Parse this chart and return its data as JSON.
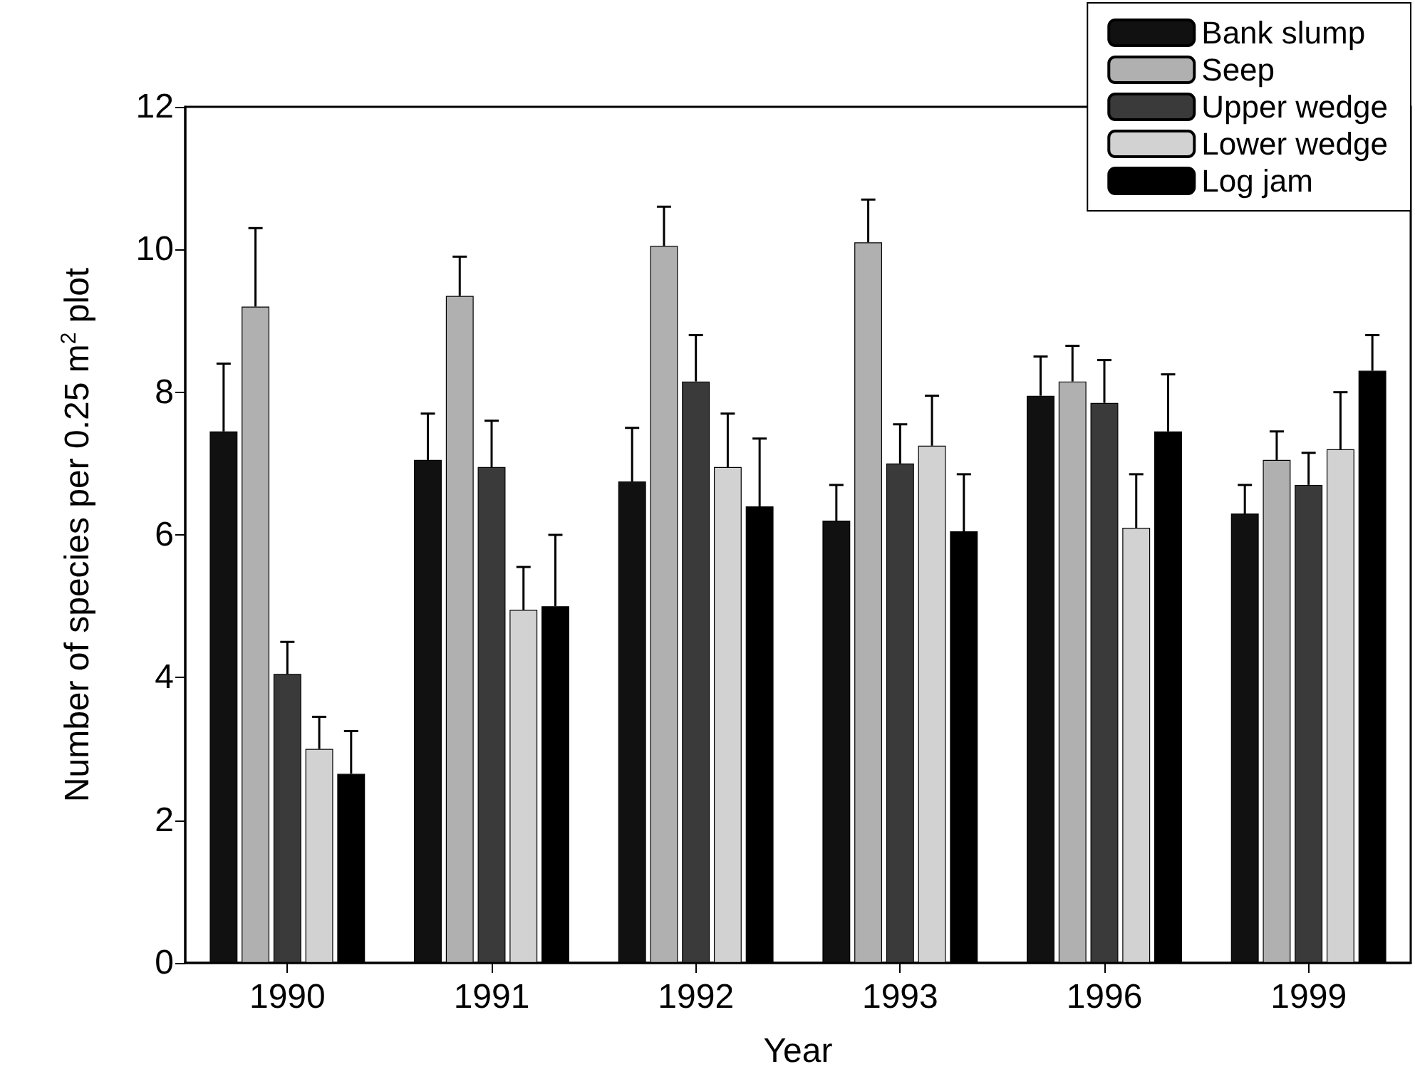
{
  "chart_data": {
    "type": "bar",
    "xlabel": "Year",
    "ylabel": "Number of species per 0.25 m$^{2}$ plot",
    "categories": [
      "1990",
      "1991",
      "1992",
      "1993",
      "1996",
      "1999"
    ],
    "series": [
      {
        "name": "Bank slump",
        "color": "#111111",
        "values": [
          7.45,
          7.05,
          6.75,
          6.2,
          7.95,
          6.3
        ],
        "errors": [
          [
            7.45,
            8.4
          ],
          [
            7.05,
            7.7
          ],
          [
            6.75,
            7.5
          ],
          [
            6.2,
            6.7
          ],
          [
            7.95,
            8.5
          ],
          [
            6.3,
            6.7
          ]
        ]
      },
      {
        "name": "Seep",
        "color": "#b0b0b0",
        "values": [
          9.2,
          9.35,
          10.05,
          10.1,
          8.15,
          7.05
        ],
        "errors": [
          [
            9.2,
            10.3
          ],
          [
            9.35,
            9.9
          ],
          [
            10.05,
            10.6
          ],
          [
            10.1,
            10.7
          ],
          [
            8.15,
            8.65
          ],
          [
            7.05,
            7.45
          ]
        ]
      },
      {
        "name": "Upper wedge",
        "color": "#3a3a3a",
        "values": [
          4.05,
          6.95,
          8.15,
          7.0,
          7.85,
          6.7
        ],
        "errors": [
          [
            4.05,
            4.5
          ],
          [
            6.95,
            7.6
          ],
          [
            8.15,
            8.8
          ],
          [
            7.0,
            7.55
          ],
          [
            7.85,
            8.45
          ],
          [
            6.7,
            7.15
          ]
        ]
      },
      {
        "name": "Lower wedge",
        "color": "#d2d2d2",
        "values": [
          3.0,
          4.95,
          6.95,
          7.25,
          6.1,
          7.2
        ],
        "errors": [
          [
            3.0,
            3.45
          ],
          [
            4.95,
            5.55
          ],
          [
            6.95,
            7.7
          ],
          [
            7.25,
            7.95
          ],
          [
            6.1,
            6.85
          ],
          [
            7.2,
            8.0
          ]
        ]
      },
      {
        "name": "Log jam",
        "color": "#000000",
        "values": [
          2.65,
          5.0,
          6.4,
          6.05,
          7.45,
          8.3
        ],
        "errors": [
          [
            2.65,
            3.25
          ],
          [
            5.0,
            6.0
          ],
          [
            6.4,
            7.35
          ],
          [
            6.05,
            6.85
          ],
          [
            7.45,
            8.25
          ],
          [
            8.3,
            8.8
          ]
        ]
      }
    ],
    "ylim": [
      0,
      12
    ],
    "yticks": [
      0,
      2,
      4,
      6,
      8,
      10,
      12
    ],
    "grid": false,
    "legend": "top right"
  }
}
